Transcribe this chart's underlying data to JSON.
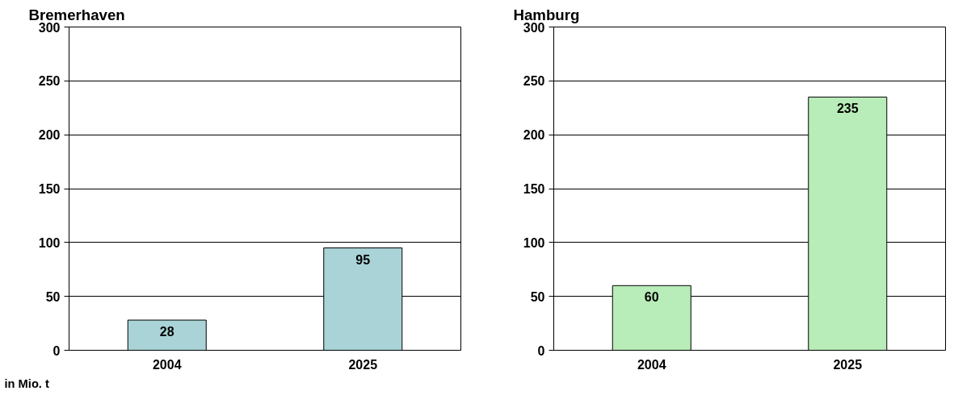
{
  "chart_data": [
    {
      "type": "bar",
      "title": "Bremerhaven",
      "categories": [
        "2004",
        "2025"
      ],
      "values": [
        28,
        95
      ],
      "color": "#a9d3d6",
      "ylim": [
        0,
        300
      ],
      "yticks": [
        0,
        50,
        100,
        150,
        200,
        250,
        300
      ],
      "grid": "y",
      "data_labels": true,
      "annotations": [
        "in Mio. t"
      ]
    },
    {
      "type": "bar",
      "title": "Hamburg",
      "categories": [
        "2004",
        "2025"
      ],
      "values": [
        60,
        235
      ],
      "color": "#b8ecb8",
      "ylim": [
        0,
        300
      ],
      "yticks": [
        0,
        50,
        100,
        150,
        200,
        250,
        300
      ],
      "grid": "y",
      "data_labels": true
    }
  ]
}
